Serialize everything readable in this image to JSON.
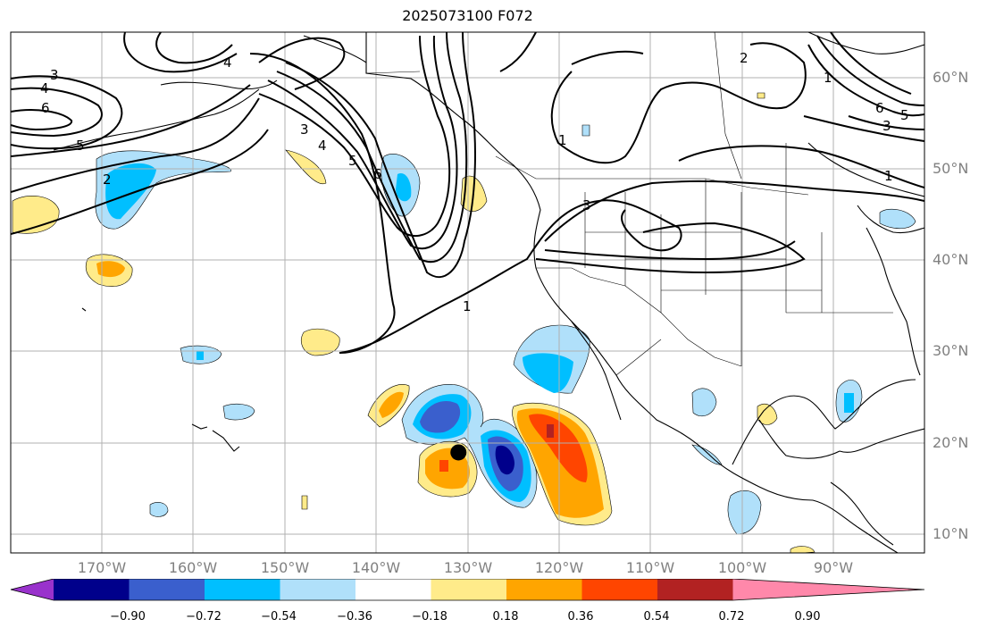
{
  "title": "2025073100 F072",
  "map": {
    "lon_range": [
      -180,
      -80
    ],
    "lat_range": [
      8,
      65
    ],
    "grid": true,
    "marker": {
      "lon": -131,
      "lat": 19,
      "label": ""
    }
  },
  "lat_labels": [
    {
      "lat": 60,
      "text": "60°N"
    },
    {
      "lat": 50,
      "text": "50°N"
    },
    {
      "lat": 40,
      "text": "40°N"
    },
    {
      "lat": 30,
      "text": "30°N"
    },
    {
      "lat": 20,
      "text": "20°N"
    },
    {
      "lat": 10,
      "text": "10°N"
    }
  ],
  "lon_labels": [
    {
      "lon": -170,
      "text": "170°W"
    },
    {
      "lon": -160,
      "text": "160°W"
    },
    {
      "lon": -150,
      "text": "150°W"
    },
    {
      "lon": -140,
      "text": "140°W"
    },
    {
      "lon": -130,
      "text": "130°W"
    },
    {
      "lon": -120,
      "text": "120°W"
    },
    {
      "lon": -110,
      "text": "110°W"
    },
    {
      "lon": -100,
      "text": "100°W"
    },
    {
      "lon": -90,
      "text": "90°W"
    }
  ],
  "colorbar": {
    "levels": [
      -0.9,
      -0.72,
      -0.54,
      -0.36,
      -0.18,
      0.18,
      0.36,
      0.54,
      0.72,
      0.9
    ],
    "colors": [
      "#9932cc",
      "#00008b",
      "#3a5fcd",
      "#00bfff",
      "#b0e0fa",
      "#ffffff",
      "#ffeb8a",
      "#ffa500",
      "#ff4500",
      "#b22222",
      "#ff88aa"
    ],
    "tick_labels": [
      "−0.90",
      "−0.72",
      "−0.54",
      "−0.36",
      "−0.18",
      "0.18",
      "0.36",
      "0.54",
      "0.72",
      "0.90"
    ],
    "extend": "both"
  },
  "contour_labels": [
    "3",
    "4",
    "6",
    "5",
    "2",
    "4",
    "3",
    "4",
    "5",
    "6",
    "1",
    "3",
    "2",
    "1",
    "6",
    "5",
    "3",
    "1",
    "1"
  ]
}
